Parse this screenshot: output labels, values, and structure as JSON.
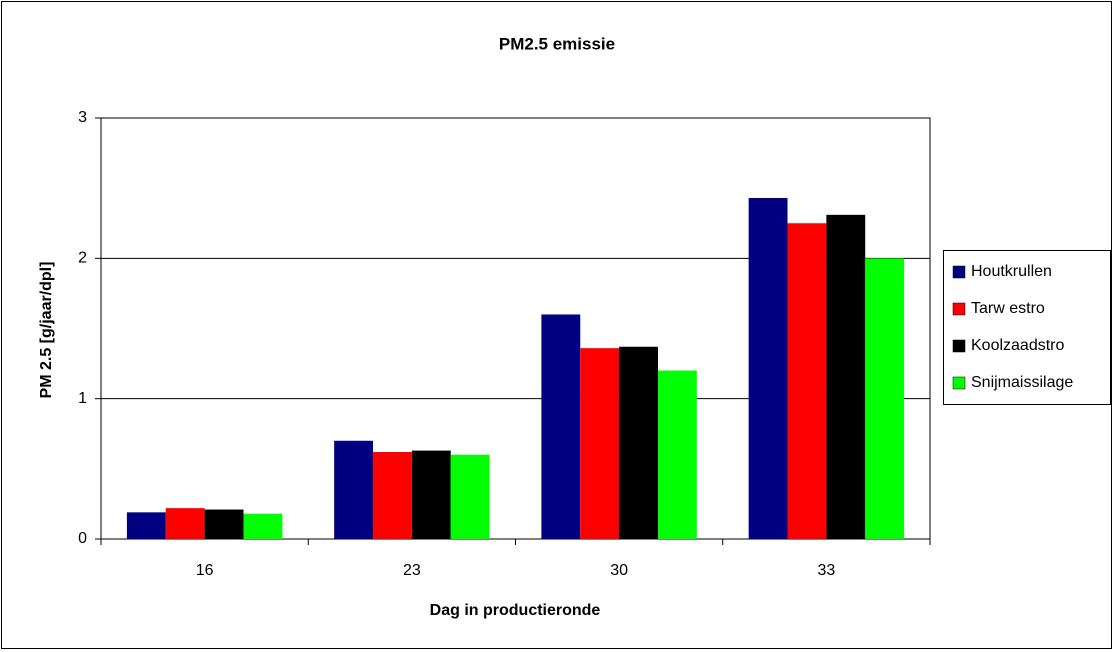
{
  "chart_data": {
    "type": "bar",
    "title": "PM2.5 emissie",
    "x_label": "Dag in productieronde",
    "y_label": "PM 2.5 [g/jaar/dpl]",
    "categories": [
      "16",
      "23",
      "30",
      "33"
    ],
    "series": [
      {
        "name": "Houtkrullen",
        "color": "#000080",
        "values": [
          0.19,
          0.7,
          1.6,
          2.43
        ]
      },
      {
        "name": "Tarw estro",
        "color": "#ff0000",
        "values": [
          0.22,
          0.62,
          1.36,
          2.25
        ]
      },
      {
        "name": "Koolzaadstro",
        "color": "#000000",
        "values": [
          0.21,
          0.63,
          1.37,
          2.31
        ]
      },
      {
        "name": "Snijmaissilage",
        "color": "#00ff00",
        "values": [
          0.18,
          0.6,
          1.2,
          2.0
        ]
      }
    ],
    "ylim": [
      0,
      3
    ],
    "yticks": [
      0,
      1,
      2,
      3
    ],
    "grid": true,
    "legend": "right"
  }
}
